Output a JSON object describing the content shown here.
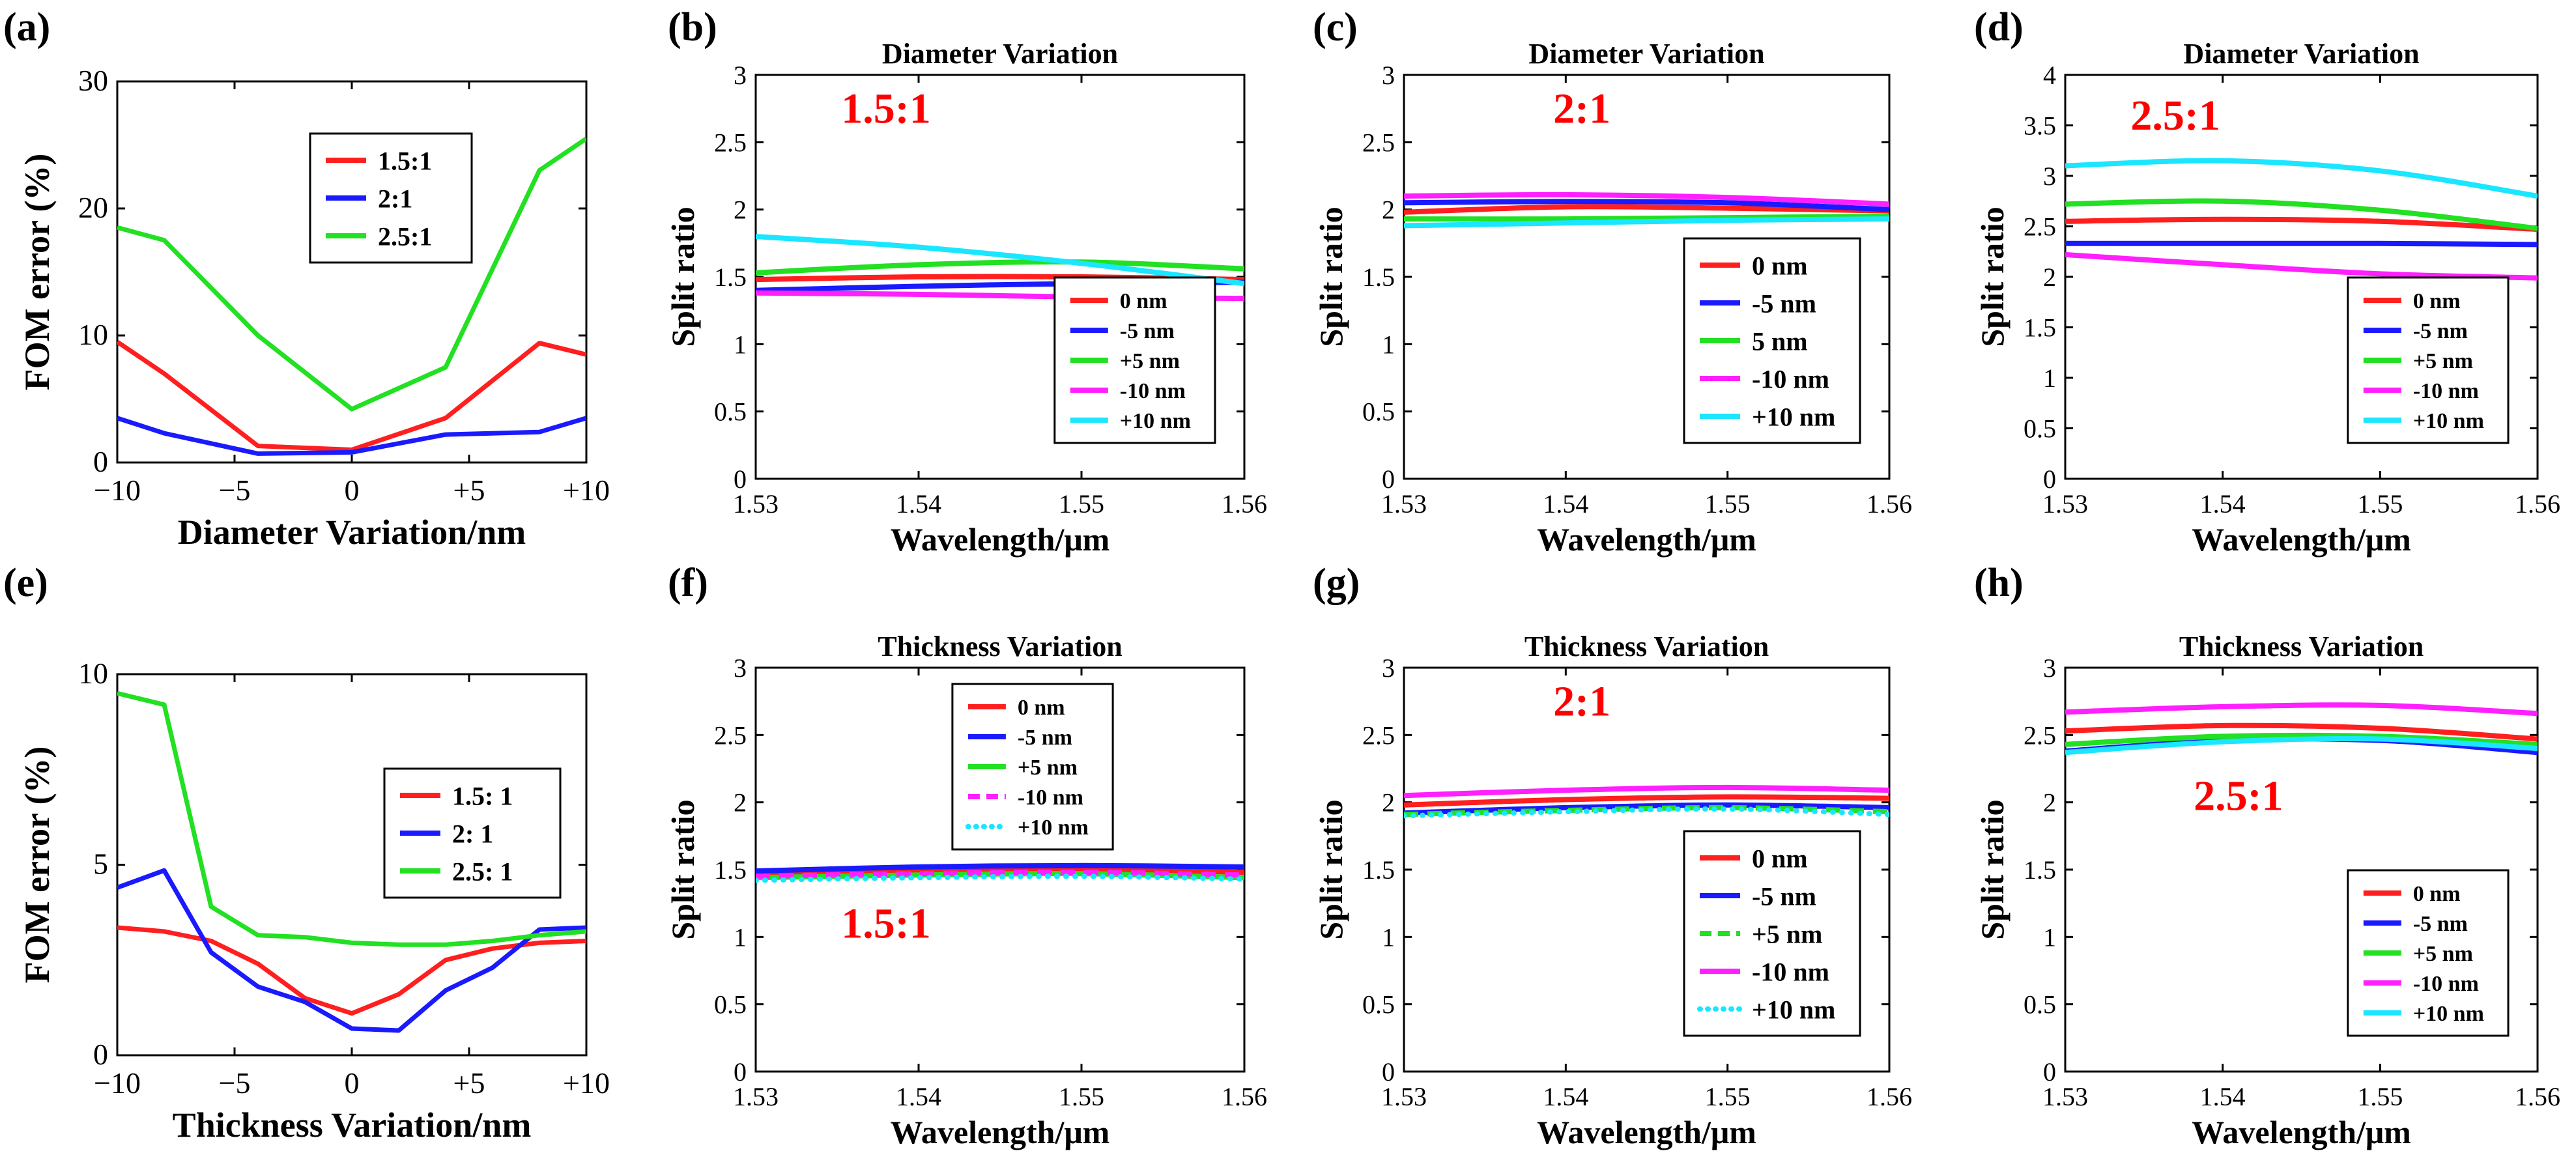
{
  "colors": {
    "red": "#ff1f1f",
    "blue": "#1a1aff",
    "green": "#22e022",
    "magenta": "#ff1fff",
    "cyan": "#1ae6ff",
    "annotation": "#ff0000"
  },
  "chart_data": [
    {
      "id": "a",
      "panel_label": "(a)",
      "type": "line",
      "title": "",
      "xlabel": "Diameter Variation/nm",
      "ylabel": "FOM error (%)",
      "xlim": [
        -10,
        10
      ],
      "ylim": [
        0,
        30
      ],
      "xticks": [
        -10,
        -5,
        0,
        5,
        10
      ],
      "xtick_labels": [
        "−10",
        "−5",
        "0",
        "+5",
        "+10"
      ],
      "yticks": [
        0,
        10,
        20,
        30
      ],
      "ytick_labels": [
        "0",
        "10",
        "20",
        "30"
      ],
      "annotation": "",
      "legend": {
        "position": "upper-middle",
        "big": true
      },
      "series": [
        {
          "name": "1.5:1",
          "color": "red",
          "x": [
            -10,
            -8,
            -4,
            0,
            4,
            8,
            10
          ],
          "y": [
            9.5,
            7,
            1.3,
            1.0,
            3.5,
            9.4,
            8.5
          ]
        },
        {
          "name": "2:1",
          "color": "blue",
          "x": [
            -10,
            -8,
            -4,
            0,
            4,
            8,
            10
          ],
          "y": [
            3.5,
            2.3,
            0.7,
            0.8,
            2.2,
            2.4,
            3.5
          ]
        },
        {
          "name": "2.5:1",
          "color": "green",
          "x": [
            -10,
            -8,
            -4,
            0,
            4,
            8,
            10
          ],
          "y": [
            18.5,
            17.5,
            10,
            4.2,
            7.5,
            23,
            25.5
          ]
        }
      ]
    },
    {
      "id": "b",
      "panel_label": "(b)",
      "type": "line",
      "title": "Diameter Variation",
      "xlabel": "Wavelength/μm",
      "ylabel": "Split ratio",
      "xlim": [
        1.53,
        1.56
      ],
      "ylim": [
        0,
        3
      ],
      "xticks": [
        1.53,
        1.54,
        1.55,
        1.56
      ],
      "xtick_labels": [
        "1.53",
        "1.54",
        "1.55",
        "1.56"
      ],
      "yticks": [
        0,
        0.5,
        1,
        1.5,
        2,
        2.5,
        3
      ],
      "ytick_labels": [
        "0",
        "0.5",
        "1",
        "1.5",
        "2",
        "2.5",
        "3"
      ],
      "annotation": "1.5:1",
      "annotation_pos": [
        1.538,
        2.75
      ],
      "legend": {
        "position": "lower-right",
        "big": false
      },
      "series": [
        {
          "name": "0 nm",
          "color": "red",
          "x": [
            1.53,
            1.54,
            1.55,
            1.56
          ],
          "y": [
            1.48,
            1.5,
            1.5,
            1.48
          ]
        },
        {
          "name": "-5 nm",
          "color": "blue",
          "x": [
            1.53,
            1.54,
            1.55,
            1.56
          ],
          "y": [
            1.4,
            1.43,
            1.45,
            1.46
          ]
        },
        {
          "name": "+5 nm",
          "color": "green",
          "x": [
            1.53,
            1.54,
            1.55,
            1.56
          ],
          "y": [
            1.53,
            1.59,
            1.61,
            1.56
          ]
        },
        {
          "name": "-10 nm",
          "color": "magenta",
          "x": [
            1.53,
            1.54,
            1.55,
            1.56
          ],
          "y": [
            1.38,
            1.37,
            1.35,
            1.34
          ]
        },
        {
          "name": "+10 nm",
          "color": "cyan",
          "x": [
            1.53,
            1.54,
            1.55,
            1.56
          ],
          "y": [
            1.8,
            1.72,
            1.6,
            1.45
          ]
        }
      ]
    },
    {
      "id": "c",
      "panel_label": "(c)",
      "type": "line",
      "title": "Diameter Variation",
      "xlabel": "Wavelength/μm",
      "ylabel": "Split ratio",
      "xlim": [
        1.53,
        1.56
      ],
      "ylim": [
        0,
        3
      ],
      "xticks": [
        1.53,
        1.54,
        1.55,
        1.56
      ],
      "xtick_labels": [
        "1.53",
        "1.54",
        "1.55",
        "1.56"
      ],
      "yticks": [
        0,
        0.5,
        1,
        1.5,
        2,
        2.5,
        3
      ],
      "ytick_labels": [
        "0",
        "0.5",
        "1",
        "1.5",
        "2",
        "2.5",
        "3"
      ],
      "annotation": "2:1",
      "annotation_pos": [
        1.541,
        2.75
      ],
      "legend": {
        "position": "lower-right",
        "big": true
      },
      "series": [
        {
          "name": "0 nm",
          "color": "red",
          "x": [
            1.53,
            1.54,
            1.55,
            1.56
          ],
          "y": [
            1.98,
            2.02,
            2.01,
            1.99
          ]
        },
        {
          "name": "-5 nm",
          "color": "blue",
          "x": [
            1.53,
            1.54,
            1.55,
            1.56
          ],
          "y": [
            2.05,
            2.06,
            2.05,
            2.0
          ]
        },
        {
          "name": "5 nm",
          "color": "green",
          "x": [
            1.53,
            1.54,
            1.55,
            1.56
          ],
          "y": [
            1.93,
            1.93,
            1.94,
            1.95
          ]
        },
        {
          "name": "-10 nm",
          "color": "magenta",
          "x": [
            1.53,
            1.54,
            1.55,
            1.56
          ],
          "y": [
            2.1,
            2.11,
            2.09,
            2.04
          ]
        },
        {
          "name": "+10 nm",
          "color": "cyan",
          "x": [
            1.53,
            1.54,
            1.55,
            1.56
          ],
          "y": [
            1.88,
            1.9,
            1.92,
            1.93
          ]
        }
      ]
    },
    {
      "id": "d",
      "panel_label": "(d)",
      "type": "line",
      "title": "Diameter Variation",
      "xlabel": "Wavelength/μm",
      "ylabel": "Split ratio",
      "xlim": [
        1.53,
        1.56
      ],
      "ylim": [
        0,
        4
      ],
      "xticks": [
        1.53,
        1.54,
        1.55,
        1.56
      ],
      "xtick_labels": [
        "1.53",
        "1.54",
        "1.55",
        "1.56"
      ],
      "yticks": [
        0,
        0.5,
        1,
        1.5,
        2,
        2.5,
        3,
        3.5,
        4
      ],
      "ytick_labels": [
        "0",
        "0.5",
        "1",
        "1.5",
        "2",
        "2.5",
        "3",
        "3.5",
        "4"
      ],
      "annotation": "2.5:1",
      "annotation_pos": [
        1.537,
        3.6
      ],
      "legend": {
        "position": "lower-right",
        "big": false
      },
      "series": [
        {
          "name": "0 nm",
          "color": "red",
          "x": [
            1.53,
            1.54,
            1.55,
            1.56
          ],
          "y": [
            2.55,
            2.57,
            2.55,
            2.47
          ]
        },
        {
          "name": "-5 nm",
          "color": "blue",
          "x": [
            1.53,
            1.54,
            1.55,
            1.56
          ],
          "y": [
            2.33,
            2.33,
            2.33,
            2.32
          ]
        },
        {
          "name": "+5 nm",
          "color": "green",
          "x": [
            1.53,
            1.54,
            1.55,
            1.56
          ],
          "y": [
            2.72,
            2.75,
            2.66,
            2.48
          ]
        },
        {
          "name": "-10 nm",
          "color": "magenta",
          "x": [
            1.53,
            1.54,
            1.55,
            1.56
          ],
          "y": [
            2.22,
            2.12,
            2.03,
            1.99
          ]
        },
        {
          "name": "+10 nm",
          "color": "cyan",
          "x": [
            1.53,
            1.54,
            1.55,
            1.56
          ],
          "y": [
            3.1,
            3.15,
            3.05,
            2.8
          ]
        }
      ]
    },
    {
      "id": "e",
      "panel_label": "(e)",
      "type": "line",
      "title": "",
      "xlabel": "Thickness Variation/nm",
      "ylabel": "FOM error (%)",
      "xlim": [
        -10,
        10
      ],
      "ylim": [
        0,
        10
      ],
      "xticks": [
        -10,
        -5,
        0,
        5,
        10
      ],
      "xtick_labels": [
        "−10",
        "−5",
        "0",
        "+5",
        "+10"
      ],
      "yticks": [
        0,
        5,
        10
      ],
      "ytick_labels": [
        "0",
        "5",
        "10"
      ],
      "annotation": "",
      "legend": {
        "position": "middle-right",
        "big": true
      },
      "series": [
        {
          "name": "1.5: 1",
          "color": "red",
          "x": [
            -10,
            -8,
            -6,
            -4,
            -2,
            0,
            2,
            4,
            6,
            8,
            10
          ],
          "y": [
            3.35,
            3.25,
            3.0,
            2.4,
            1.5,
            1.1,
            1.6,
            2.5,
            2.8,
            2.95,
            3.0
          ]
        },
        {
          "name": "2: 1",
          "color": "blue",
          "x": [
            -10,
            -8,
            -6,
            -4,
            -2,
            0,
            2,
            4,
            6,
            8,
            10
          ],
          "y": [
            4.4,
            4.85,
            2.7,
            1.8,
            1.4,
            0.7,
            0.65,
            1.7,
            2.3,
            3.3,
            3.35
          ]
        },
        {
          "name": "2.5: 1",
          "color": "green",
          "x": [
            -10,
            -8,
            -6,
            -4,
            -2,
            0,
            2,
            4,
            6,
            8,
            10
          ],
          "y": [
            9.5,
            9.2,
            3.9,
            3.15,
            3.1,
            2.95,
            2.9,
            2.9,
            3.0,
            3.15,
            3.25
          ]
        }
      ]
    },
    {
      "id": "f",
      "panel_label": "(f)",
      "type": "line",
      "title": "Thickness Variation",
      "xlabel": "Wavelength/μm",
      "ylabel": "Split ratio",
      "xlim": [
        1.53,
        1.56
      ],
      "ylim": [
        0,
        3
      ],
      "xticks": [
        1.53,
        1.54,
        1.55,
        1.56
      ],
      "xtick_labels": [
        "1.53",
        "1.54",
        "1.55",
        "1.56"
      ],
      "yticks": [
        0,
        0.5,
        1,
        1.5,
        2,
        2.5,
        3
      ],
      "ytick_labels": [
        "0",
        "0.5",
        "1",
        "1.5",
        "2",
        "2.5",
        "3"
      ],
      "annotation": "1.5:1",
      "annotation_pos": [
        1.538,
        1.1
      ],
      "legend": {
        "position": "upper-middle",
        "big": false
      },
      "series": [
        {
          "name": "0 nm",
          "color": "red",
          "x": [
            1.53,
            1.54,
            1.55,
            1.56
          ],
          "y": [
            1.47,
            1.49,
            1.5,
            1.48
          ]
        },
        {
          "name": "-5 nm",
          "color": "blue",
          "x": [
            1.53,
            1.54,
            1.55,
            1.56
          ],
          "y": [
            1.49,
            1.52,
            1.53,
            1.52
          ]
        },
        {
          "name": "+5 nm",
          "color": "green",
          "x": [
            1.53,
            1.54,
            1.55,
            1.56
          ],
          "y": [
            1.44,
            1.46,
            1.47,
            1.44
          ]
        },
        {
          "name": "-10 nm",
          "color": "magenta",
          "dash": "dash",
          "x": [
            1.53,
            1.54,
            1.55,
            1.56
          ],
          "y": [
            1.45,
            1.47,
            1.48,
            1.46
          ]
        },
        {
          "name": "+10 nm",
          "color": "cyan",
          "dash": "dot",
          "x": [
            1.53,
            1.54,
            1.55,
            1.56
          ],
          "y": [
            1.42,
            1.44,
            1.45,
            1.43
          ]
        }
      ]
    },
    {
      "id": "g",
      "panel_label": "(g)",
      "type": "line",
      "title": "Thickness Variation",
      "xlabel": "Wavelength/μm",
      "ylabel": "Split ratio",
      "xlim": [
        1.53,
        1.56
      ],
      "ylim": [
        0,
        3
      ],
      "xticks": [
        1.53,
        1.54,
        1.55,
        1.56
      ],
      "xtick_labels": [
        "1.53",
        "1.54",
        "1.55",
        "1.56"
      ],
      "yticks": [
        0,
        0.5,
        1,
        1.5,
        2,
        2.5,
        3
      ],
      "ytick_labels": [
        "0",
        "0.5",
        "1",
        "1.5",
        "2",
        "2.5",
        "3"
      ],
      "annotation": "2:1",
      "annotation_pos": [
        1.541,
        2.75
      ],
      "legend": {
        "position": "lower-right",
        "big": true
      },
      "series": [
        {
          "name": "0 nm",
          "color": "red",
          "x": [
            1.53,
            1.54,
            1.55,
            1.56
          ],
          "y": [
            1.98,
            2.02,
            2.04,
            2.03
          ]
        },
        {
          "name": "-5 nm",
          "color": "blue",
          "x": [
            1.53,
            1.54,
            1.55,
            1.56
          ],
          "y": [
            1.92,
            1.96,
            1.98,
            1.96
          ]
        },
        {
          "name": "+5 nm",
          "color": "green",
          "dash": "dash",
          "x": [
            1.53,
            1.54,
            1.55,
            1.56
          ],
          "y": [
            1.91,
            1.94,
            1.96,
            1.93
          ]
        },
        {
          "name": "-10 nm",
          "color": "magenta",
          "x": [
            1.53,
            1.54,
            1.55,
            1.56
          ],
          "y": [
            2.05,
            2.09,
            2.11,
            2.09
          ]
        },
        {
          "name": "+10 nm",
          "color": "cyan",
          "dash": "dot",
          "x": [
            1.53,
            1.54,
            1.55,
            1.56
          ],
          "y": [
            1.9,
            1.93,
            1.95,
            1.91
          ]
        }
      ]
    },
    {
      "id": "h",
      "panel_label": "(h)",
      "type": "line",
      "title": "Thickness Variation",
      "xlabel": "Wavelength/μm",
      "ylabel": "Split ratio",
      "xlim": [
        1.53,
        1.56
      ],
      "ylim": [
        0,
        3
      ],
      "xticks": [
        1.53,
        1.54,
        1.55,
        1.56
      ],
      "xtick_labels": [
        "1.53",
        "1.54",
        "1.55",
        "1.56"
      ],
      "yticks": [
        0,
        0.5,
        1,
        1.5,
        2,
        2.5,
        3
      ],
      "ytick_labels": [
        "0",
        "0.5",
        "1",
        "1.5",
        "2",
        "2.5",
        "3"
      ],
      "annotation": "2.5:1",
      "annotation_pos": [
        1.541,
        2.05
      ],
      "legend": {
        "position": "lower-right",
        "big": false
      },
      "series": [
        {
          "name": "0 nm",
          "color": "red",
          "x": [
            1.53,
            1.54,
            1.55,
            1.56
          ],
          "y": [
            2.53,
            2.57,
            2.55,
            2.47
          ]
        },
        {
          "name": "-5 nm",
          "color": "blue",
          "x": [
            1.53,
            1.54,
            1.55,
            1.56
          ],
          "y": [
            2.38,
            2.46,
            2.46,
            2.37
          ]
        },
        {
          "name": "+5 nm",
          "color": "green",
          "x": [
            1.53,
            1.54,
            1.55,
            1.56
          ],
          "y": [
            2.43,
            2.49,
            2.49,
            2.43
          ]
        },
        {
          "name": "-10 nm",
          "color": "magenta",
          "x": [
            1.53,
            1.54,
            1.55,
            1.56
          ],
          "y": [
            2.67,
            2.71,
            2.72,
            2.66
          ]
        },
        {
          "name": "+10 nm",
          "color": "cyan",
          "x": [
            1.53,
            1.54,
            1.55,
            1.56
          ],
          "y": [
            2.37,
            2.45,
            2.47,
            2.4
          ]
        }
      ]
    }
  ]
}
